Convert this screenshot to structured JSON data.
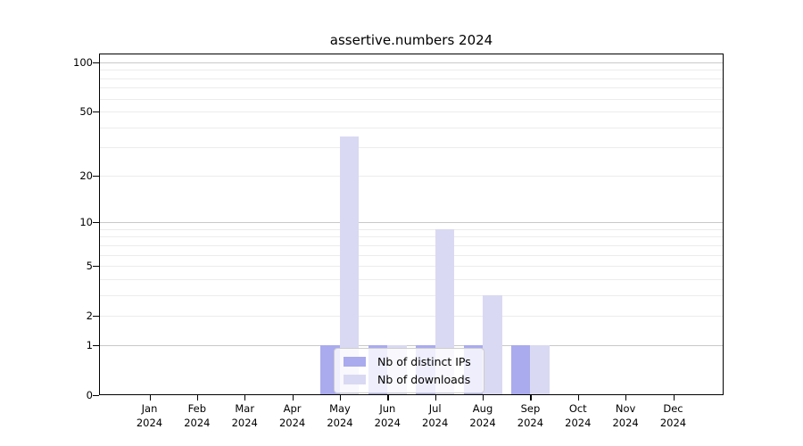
{
  "chart_data": {
    "type": "bar",
    "title": "assertive.numbers 2024",
    "x": {
      "categories": [
        "Jan",
        "Feb",
        "Mar",
        "Apr",
        "May",
        "Jun",
        "Jul",
        "Aug",
        "Sep",
        "Oct",
        "Nov",
        "Dec"
      ],
      "year": "2024"
    },
    "y_axis": {
      "scale": "log1p",
      "ticks": [
        0,
        1,
        2,
        5,
        10,
        20,
        50,
        100
      ],
      "max": 113,
      "minor_gridlines": [
        2,
        3,
        4,
        5,
        6,
        7,
        8,
        9,
        20,
        30,
        40,
        50,
        60,
        70,
        80,
        90
      ],
      "major_gridlines": [
        1,
        10,
        100
      ],
      "grid_on": true
    },
    "series": [
      {
        "name": "Nb of distinct IPs",
        "color": "#aaaaee",
        "values": [
          0,
          0,
          0,
          0,
          1,
          1,
          1,
          1,
          1,
          0,
          0,
          0
        ]
      },
      {
        "name": "Nb of downloads",
        "color": "#d9d9f3",
        "values": [
          0,
          0,
          0,
          0,
          35,
          1,
          9,
          3,
          1,
          0,
          0,
          0
        ]
      }
    ],
    "legend_position": "bottom-center"
  },
  "colors": {
    "minor_grid": "#ececec",
    "major_grid": "#c9c9c9",
    "frame": "#000000",
    "background": "#ffffff"
  }
}
